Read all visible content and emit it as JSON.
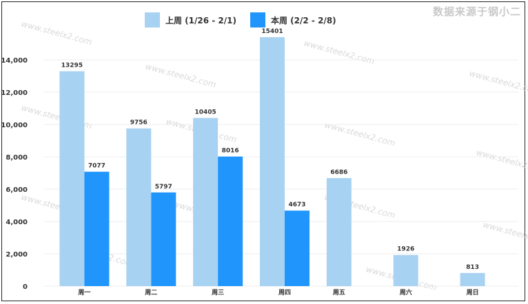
{
  "source_note": "数据来源于钢小二",
  "watermark": "www.steelx2.com",
  "chart_data": {
    "type": "bar",
    "categories": [
      "周一",
      "周二",
      "周三",
      "周四",
      "周五",
      "周六",
      "周日"
    ],
    "series": [
      {
        "name": "上周 (1/26 - 2/1)",
        "color": "#a8d2f2",
        "values": [
          13295,
          9756,
          10405,
          15401,
          6686,
          1926,
          813
        ]
      },
      {
        "name": "本周 (2/2 - 2/8)",
        "color": "#2096fd",
        "values": [
          7077,
          5797,
          8016,
          4673,
          null,
          null,
          null
        ]
      }
    ],
    "yticks": [
      0,
      2000,
      4000,
      6000,
      8000,
      10000,
      12000,
      14000
    ],
    "ytick_labels": [
      "0",
      "2,000",
      "4,000",
      "6,000",
      "8,000",
      "10,000",
      "12,000",
      "14,000"
    ],
    "ylim": [
      0,
      16000
    ],
    "grid": true,
    "legend_position": "top-center"
  }
}
